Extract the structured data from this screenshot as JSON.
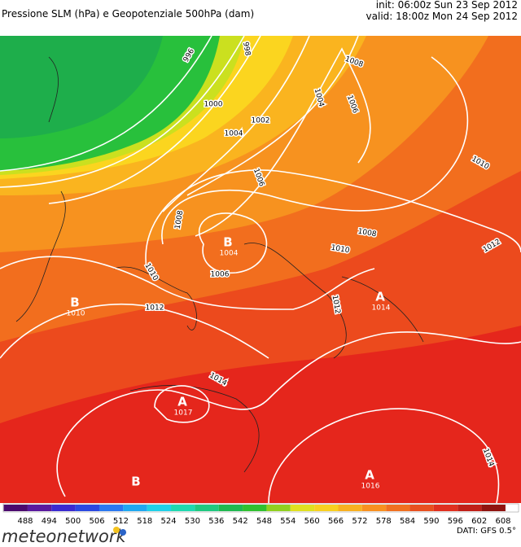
{
  "header": {
    "title": "Pressione SLM (hPa) e Geopotenziale 500hPa (dam)",
    "init": "init: 06:00z Sun 23 Sep 2012",
    "valid": "valid: 18:00z Mon 24 Sep 2012"
  },
  "map": {
    "isobar_labels": [
      996,
      998,
      1008,
      1004,
      1006,
      1000,
      1002,
      1004,
      1006,
      1010,
      1008,
      1008,
      1010,
      1012,
      1010,
      1006,
      1012,
      1012,
      1014,
      1014
    ],
    "centers": [
      {
        "letter": "B",
        "value": 1004
      },
      {
        "letter": "B",
        "value": 1010
      },
      {
        "letter": "A",
        "value": 1014
      },
      {
        "letter": "A",
        "value": 1017
      },
      {
        "letter": "B"
      },
      {
        "letter": "A",
        "value": 1016
      }
    ]
  },
  "colorbar": {
    "labels": [
      488,
      494,
      500,
      506,
      512,
      518,
      524,
      530,
      536,
      542,
      548,
      554,
      560,
      566,
      572,
      578,
      584,
      590,
      596,
      602,
      608
    ]
  },
  "footer": {
    "logo": "meteonetwork",
    "source": "DATI: GFS 0.5°"
  }
}
